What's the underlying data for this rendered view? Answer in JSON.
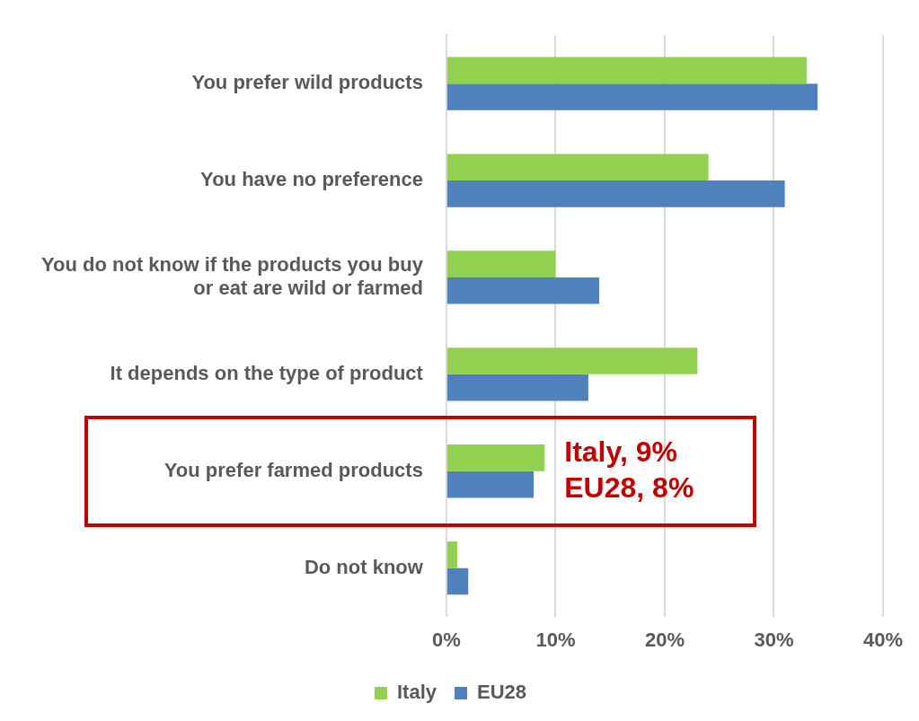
{
  "chart_data": {
    "type": "bar",
    "orientation": "horizontal",
    "categories": [
      "You prefer wild products",
      "You have no preference",
      "You do not know if the products you buy or eat are wild or farmed",
      "It depends on the type of product",
      "You prefer farmed products",
      "Do not know"
    ],
    "series": [
      {
        "name": "Italy",
        "color": "#92d050",
        "values": [
          33,
          24,
          10,
          23,
          9,
          1
        ]
      },
      {
        "name": "EU28",
        "color": "#4f81bd",
        "values": [
          34,
          31,
          14,
          13,
          8,
          2
        ]
      }
    ],
    "xlim": [
      0,
      40
    ],
    "xticks": [
      {
        "value": 0,
        "label": "0%"
      },
      {
        "value": 10,
        "label": "10%"
      },
      {
        "value": 20,
        "label": "20%"
      },
      {
        "value": 30,
        "label": "30%"
      },
      {
        "value": 40,
        "label": "40%"
      }
    ],
    "grid": "x",
    "legend": "bottom",
    "annotations": [
      {
        "text": "Italy, 9%",
        "x": 9,
        "y": "You prefer farmed products"
      },
      {
        "text": "EU28, 8%",
        "x": 8,
        "y": "You prefer farmed products"
      }
    ]
  }
}
